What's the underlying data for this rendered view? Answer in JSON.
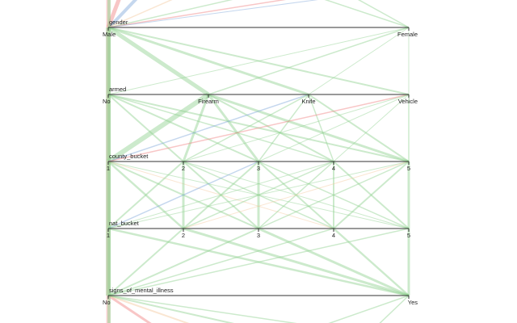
{
  "chart_data": {
    "type": "parallel-categories",
    "dimensions": [
      {
        "name": "gender",
        "categories": [
          "Male",
          "Female"
        ]
      },
      {
        "name": "armed",
        "categories": [
          "No",
          "Firearm",
          "Knife",
          "Vehicle"
        ]
      },
      {
        "name": "county_bucket",
        "categories": [
          "1",
          "2",
          "3",
          "4",
          "5"
        ]
      },
      {
        "name": "nat_bucket",
        "categories": [
          "1",
          "2",
          "3",
          "4",
          "5"
        ]
      },
      {
        "name": "signs_of_mental_illness",
        "categories": [
          "No",
          "Yes"
        ]
      }
    ],
    "colors": {
      "green": "#8fd18f",
      "red": "#f08080",
      "blue": "#7fa7d9",
      "orange": "#f5c79b",
      "axis": "#333333"
    },
    "links": [
      {
        "from": [
          0,
          0
        ],
        "to": [
          1,
          0
        ],
        "weight": 6,
        "color": "green"
      },
      {
        "from": [
          0,
          0
        ],
        "to": [
          1,
          1
        ],
        "weight": 5,
        "color": "green"
      },
      {
        "from": [
          0,
          0
        ],
        "to": [
          1,
          2
        ],
        "weight": 3,
        "color": "green"
      },
      {
        "from": [
          0,
          0
        ],
        "to": [
          1,
          3
        ],
        "weight": 2,
        "color": "green"
      },
      {
        "from": [
          0,
          1
        ],
        "to": [
          1,
          0
        ],
        "weight": 1,
        "color": "green"
      },
      {
        "from": [
          0,
          1
        ],
        "to": [
          1,
          1
        ],
        "weight": 1.5,
        "color": "green"
      },
      {
        "from": [
          0,
          1
        ],
        "to": [
          1,
          2
        ],
        "weight": 1,
        "color": "green"
      },
      {
        "from": [
          0,
          1
        ],
        "to": [
          1,
          3
        ],
        "weight": 1,
        "color": "green"
      },
      {
        "from": [
          1,
          0
        ],
        "to": [
          2,
          0
        ],
        "weight": 6,
        "color": "green"
      },
      {
        "from": [
          1,
          0
        ],
        "to": [
          2,
          1
        ],
        "weight": 2,
        "color": "green"
      },
      {
        "from": [
          1,
          0
        ],
        "to": [
          2,
          2
        ],
        "weight": 2,
        "color": "green"
      },
      {
        "from": [
          1,
          0
        ],
        "to": [
          2,
          3
        ],
        "weight": 1.5,
        "color": "green"
      },
      {
        "from": [
          1,
          0
        ],
        "to": [
          2,
          4
        ],
        "weight": 2,
        "color": "green"
      },
      {
        "from": [
          1,
          1
        ],
        "to": [
          2,
          0
        ],
        "weight": 6,
        "color": "green"
      },
      {
        "from": [
          1,
          1
        ],
        "to": [
          2,
          1
        ],
        "weight": 3,
        "color": "green"
      },
      {
        "from": [
          1,
          1
        ],
        "to": [
          2,
          2
        ],
        "weight": 3,
        "color": "green"
      },
      {
        "from": [
          1,
          1
        ],
        "to": [
          2,
          3
        ],
        "weight": 2,
        "color": "green"
      },
      {
        "from": [
          1,
          1
        ],
        "to": [
          2,
          4
        ],
        "weight": 3,
        "color": "green"
      },
      {
        "from": [
          1,
          2
        ],
        "to": [
          2,
          0
        ],
        "weight": 1.5,
        "color": "blue"
      },
      {
        "from": [
          1,
          2
        ],
        "to": [
          2,
          1
        ],
        "weight": 1.5,
        "color": "green"
      },
      {
        "from": [
          1,
          2
        ],
        "to": [
          2,
          2
        ],
        "weight": 1.5,
        "color": "green"
      },
      {
        "from": [
          1,
          2
        ],
        "to": [
          2,
          3
        ],
        "weight": 1.5,
        "color": "green"
      },
      {
        "from": [
          1,
          2
        ],
        "to": [
          2,
          4
        ],
        "weight": 2,
        "color": "green"
      },
      {
        "from": [
          1,
          3
        ],
        "to": [
          2,
          0
        ],
        "weight": 1.5,
        "color": "red"
      },
      {
        "from": [
          1,
          3
        ],
        "to": [
          2,
          1
        ],
        "weight": 1,
        "color": "green"
      },
      {
        "from": [
          1,
          3
        ],
        "to": [
          2,
          2
        ],
        "weight": 1,
        "color": "green"
      },
      {
        "from": [
          1,
          3
        ],
        "to": [
          2,
          3
        ],
        "weight": 1,
        "color": "green"
      },
      {
        "from": [
          1,
          3
        ],
        "to": [
          2,
          4
        ],
        "weight": 1.5,
        "color": "green"
      },
      {
        "from": [
          2,
          0
        ],
        "to": [
          3,
          0
        ],
        "weight": 6,
        "color": "green"
      },
      {
        "from": [
          2,
          0
        ],
        "to": [
          3,
          1
        ],
        "weight": 2.5,
        "color": "green"
      },
      {
        "from": [
          2,
          0
        ],
        "to": [
          3,
          2
        ],
        "weight": 2,
        "color": "green"
      },
      {
        "from": [
          2,
          0
        ],
        "to": [
          3,
          3
        ],
        "weight": 1,
        "color": "orange"
      },
      {
        "from": [
          2,
          0
        ],
        "to": [
          3,
          4
        ],
        "weight": 1,
        "color": "green"
      },
      {
        "from": [
          2,
          1
        ],
        "to": [
          3,
          0
        ],
        "weight": 2,
        "color": "green"
      },
      {
        "from": [
          2,
          1
        ],
        "to": [
          3,
          1
        ],
        "weight": 3,
        "color": "green"
      },
      {
        "from": [
          2,
          1
        ],
        "to": [
          3,
          2
        ],
        "weight": 2,
        "color": "green"
      },
      {
        "from": [
          2,
          1
        ],
        "to": [
          3,
          3
        ],
        "weight": 1.5,
        "color": "green"
      },
      {
        "from": [
          2,
          1
        ],
        "to": [
          3,
          4
        ],
        "weight": 1,
        "color": "green"
      },
      {
        "from": [
          2,
          2
        ],
        "to": [
          3,
          0
        ],
        "weight": 1.5,
        "color": "blue"
      },
      {
        "from": [
          2,
          2
        ],
        "to": [
          3,
          1
        ],
        "weight": 2,
        "color": "green"
      },
      {
        "from": [
          2,
          2
        ],
        "to": [
          3,
          2
        ],
        "weight": 3,
        "color": "green"
      },
      {
        "from": [
          2,
          2
        ],
        "to": [
          3,
          3
        ],
        "weight": 2,
        "color": "green"
      },
      {
        "from": [
          2,
          2
        ],
        "to": [
          3,
          4
        ],
        "weight": 1.5,
        "color": "green"
      },
      {
        "from": [
          2,
          3
        ],
        "to": [
          3,
          0
        ],
        "weight": 1,
        "color": "green"
      },
      {
        "from": [
          2,
          3
        ],
        "to": [
          3,
          1
        ],
        "weight": 1.5,
        "color": "green"
      },
      {
        "from": [
          2,
          3
        ],
        "to": [
          3,
          2
        ],
        "weight": 1.5,
        "color": "green"
      },
      {
        "from": [
          2,
          3
        ],
        "to": [
          3,
          3
        ],
        "weight": 2,
        "color": "green"
      },
      {
        "from": [
          2,
          3
        ],
        "to": [
          3,
          4
        ],
        "weight": 2,
        "color": "green"
      },
      {
        "from": [
          2,
          4
        ],
        "to": [
          3,
          0
        ],
        "weight": 1,
        "color": "green"
      },
      {
        "from": [
          2,
          4
        ],
        "to": [
          3,
          1
        ],
        "weight": 1,
        "color": "orange"
      },
      {
        "from": [
          2,
          4
        ],
        "to": [
          3,
          2
        ],
        "weight": 1.5,
        "color": "green"
      },
      {
        "from": [
          2,
          4
        ],
        "to": [
          3,
          3
        ],
        "weight": 2,
        "color": "green"
      },
      {
        "from": [
          2,
          4
        ],
        "to": [
          3,
          4
        ],
        "weight": 3,
        "color": "green"
      },
      {
        "from": [
          3,
          0
        ],
        "to": [
          4,
          0
        ],
        "weight": 6,
        "color": "green"
      },
      {
        "from": [
          3,
          0
        ],
        "to": [
          4,
          1
        ],
        "weight": 2.5,
        "color": "green"
      },
      {
        "from": [
          3,
          1
        ],
        "to": [
          4,
          0
        ],
        "weight": 2,
        "color": "green"
      },
      {
        "from": [
          3,
          1
        ],
        "to": [
          4,
          1
        ],
        "weight": 3,
        "color": "green"
      },
      {
        "from": [
          3,
          2
        ],
        "to": [
          4,
          0
        ],
        "weight": 2,
        "color": "green"
      },
      {
        "from": [
          3,
          2
        ],
        "to": [
          4,
          1
        ],
        "weight": 3,
        "color": "green"
      },
      {
        "from": [
          3,
          3
        ],
        "to": [
          4,
          0
        ],
        "weight": 1.5,
        "color": "green"
      },
      {
        "from": [
          3,
          3
        ],
        "to": [
          4,
          1
        ],
        "weight": 2.5,
        "color": "green"
      },
      {
        "from": [
          3,
          4
        ],
        "to": [
          4,
          0
        ],
        "weight": 1.5,
        "color": "green"
      },
      {
        "from": [
          3,
          4
        ],
        "to": [
          4,
          1
        ],
        "weight": 3,
        "color": "green"
      }
    ]
  }
}
